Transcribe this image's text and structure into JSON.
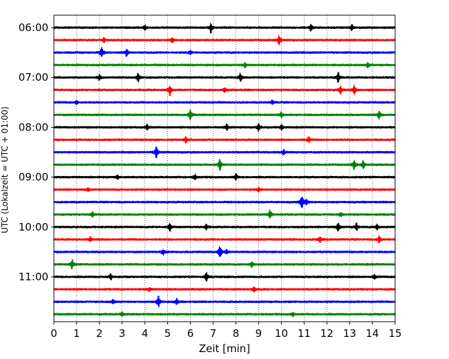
{
  "chart_data": {
    "type": "line",
    "title": "",
    "xlabel": "Zeit  [min]",
    "ylabel": "UTC (Lokalzeit = UTC + 01:00)",
    "xlim": [
      0,
      15
    ],
    "x_ticks": [
      "0",
      "1",
      "2",
      "3",
      "4",
      "5",
      "6",
      "7",
      "8",
      "9",
      "10",
      "11",
      "12",
      "13",
      "14",
      "15"
    ],
    "y_ticks": [
      "06:00",
      "07:00",
      "08:00",
      "09:00",
      "10:00",
      "11:00"
    ],
    "grid": "vertical dotted lines at each minute",
    "trace_interval_min": 15,
    "color_cycle": [
      "#000000",
      "#ff0000",
      "#0000ff",
      "#008000"
    ],
    "traces": [
      {
        "start": "06:00",
        "color": "#000000",
        "events": [
          [
            6.9,
            1.0
          ],
          [
            4.0,
            0.5
          ],
          [
            11.3,
            0.6
          ],
          [
            13.1,
            0.5
          ]
        ]
      },
      {
        "start": "06:15",
        "color": "#ff0000",
        "events": [
          [
            9.9,
            1.1
          ],
          [
            5.2,
            0.5
          ],
          [
            2.2,
            0.4
          ]
        ]
      },
      {
        "start": "06:30",
        "color": "#0000ff",
        "events": [
          [
            2.1,
            1.4
          ],
          [
            3.2,
            0.7
          ],
          [
            6.0,
            0.4
          ]
        ]
      },
      {
        "start": "06:45",
        "color": "#008000",
        "events": [
          [
            8.4,
            0.5
          ],
          [
            13.8,
            0.5
          ]
        ]
      },
      {
        "start": "07:00",
        "color": "#000000",
        "events": [
          [
            3.7,
            1.0
          ],
          [
            12.5,
            1.0
          ],
          [
            8.2,
            0.8
          ],
          [
            2.0,
            0.5
          ]
        ]
      },
      {
        "start": "07:15",
        "color": "#ff0000",
        "events": [
          [
            5.1,
            1.1
          ],
          [
            13.2,
            1.0
          ],
          [
            12.6,
            0.8
          ],
          [
            7.5,
            0.5
          ]
        ]
      },
      {
        "start": "07:30",
        "color": "#0000ff",
        "events": [
          [
            1.0,
            0.4
          ],
          [
            9.6,
            0.4
          ]
        ]
      },
      {
        "start": "07:45",
        "color": "#008000",
        "events": [
          [
            6.0,
            1.1
          ],
          [
            14.3,
            0.8
          ],
          [
            10.0,
            0.5
          ]
        ]
      },
      {
        "start": "08:00",
        "color": "#000000",
        "events": [
          [
            9.0,
            0.8
          ],
          [
            7.6,
            0.6
          ],
          [
            4.1,
            0.5
          ],
          [
            10.0,
            0.5
          ]
        ]
      },
      {
        "start": "08:15",
        "color": "#ff0000",
        "events": [
          [
            5.8,
            0.6
          ],
          [
            11.2,
            0.5
          ]
        ]
      },
      {
        "start": "08:30",
        "color": "#0000ff",
        "events": [
          [
            4.5,
            1.5
          ],
          [
            10.1,
            0.5
          ]
        ]
      },
      {
        "start": "08:45",
        "color": "#008000",
        "events": [
          [
            7.3,
            1.2
          ],
          [
            13.2,
            1.1
          ],
          [
            13.6,
            0.8
          ]
        ]
      },
      {
        "start": "09:00",
        "color": "#000000",
        "events": [
          [
            8.0,
            0.6
          ],
          [
            6.2,
            0.5
          ],
          [
            2.8,
            0.4
          ]
        ]
      },
      {
        "start": "09:15",
        "color": "#ff0000",
        "events": [
          [
            9.0,
            0.4
          ],
          [
            1.5,
            0.4
          ]
        ]
      },
      {
        "start": "09:30",
        "color": "#0000ff",
        "events": [
          [
            10.9,
            1.8
          ],
          [
            11.1,
            0.6
          ]
        ]
      },
      {
        "start": "09:45",
        "color": "#008000",
        "events": [
          [
            9.5,
            0.9
          ],
          [
            1.7,
            0.5
          ],
          [
            12.6,
            0.4
          ]
        ]
      },
      {
        "start": "10:00",
        "color": "#000000",
        "events": [
          [
            12.5,
            1.1
          ],
          [
            5.1,
            0.8
          ],
          [
            6.7,
            0.6
          ],
          [
            13.3,
            0.7
          ],
          [
            14.2,
            0.6
          ]
        ]
      },
      {
        "start": "10:15",
        "color": "#ff0000",
        "events": [
          [
            14.3,
            0.7
          ],
          [
            11.7,
            0.6
          ],
          [
            1.6,
            0.5
          ]
        ]
      },
      {
        "start": "10:30",
        "color": "#0000ff",
        "events": [
          [
            7.3,
            1.8
          ],
          [
            4.8,
            0.6
          ],
          [
            7.6,
            0.5
          ]
        ]
      },
      {
        "start": "10:45",
        "color": "#008000",
        "events": [
          [
            0.8,
            1.0
          ],
          [
            8.7,
            0.5
          ]
        ]
      },
      {
        "start": "11:00",
        "color": "#000000",
        "events": [
          [
            6.7,
            0.9
          ],
          [
            2.5,
            0.6
          ],
          [
            14.1,
            0.5
          ]
        ]
      },
      {
        "start": "11:15",
        "color": "#ff0000",
        "events": [
          [
            8.8,
            0.5
          ],
          [
            4.2,
            0.4
          ]
        ]
      },
      {
        "start": "11:30",
        "color": "#0000ff",
        "events": [
          [
            4.6,
            1.3
          ],
          [
            5.4,
            0.6
          ],
          [
            2.6,
            0.4
          ]
        ]
      },
      {
        "start": "11:45",
        "color": "#008000",
        "events": [
          [
            3.0,
            0.4
          ],
          [
            10.5,
            0.4
          ]
        ]
      }
    ]
  }
}
